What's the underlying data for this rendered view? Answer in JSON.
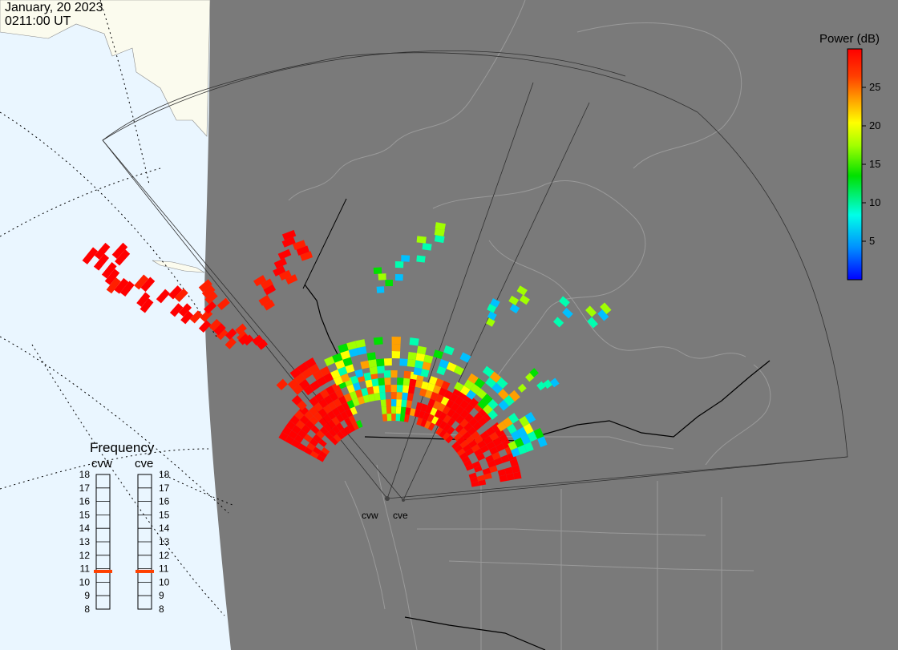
{
  "timestamp": {
    "date": "January, 20 2023",
    "time": "0211:00 UT"
  },
  "colorbar": {
    "title": "Power (dB)",
    "ticks": [
      "25",
      "20",
      "15",
      "10",
      "5"
    ],
    "tick_values": [
      25,
      20,
      15,
      10,
      5
    ],
    "range": [
      0,
      30
    ],
    "colors": [
      "#0000ff",
      "#00a0ff",
      "#00ffe0",
      "#00e000",
      "#a0ff00",
      "#ffff00",
      "#ffa000",
      "#ff4000",
      "#ff0000"
    ]
  },
  "frequency_panel": {
    "title": "Frequency",
    "radars": [
      {
        "code": "cvw",
        "frequency": 10.8
      },
      {
        "code": "cve",
        "frequency": 10.8
      }
    ],
    "scale": [
      "18",
      "17",
      "16",
      "15",
      "14",
      "13",
      "12",
      "11",
      "10",
      "9",
      "8"
    ]
  },
  "radar_sites": {
    "west_label": "cvw",
    "east_label": "cve"
  },
  "colors": {
    "night_side": "#7a7a7a",
    "day_ocean": "#eaf6ff",
    "day_land": "#fbfbee",
    "marker": "#ff4000"
  }
}
